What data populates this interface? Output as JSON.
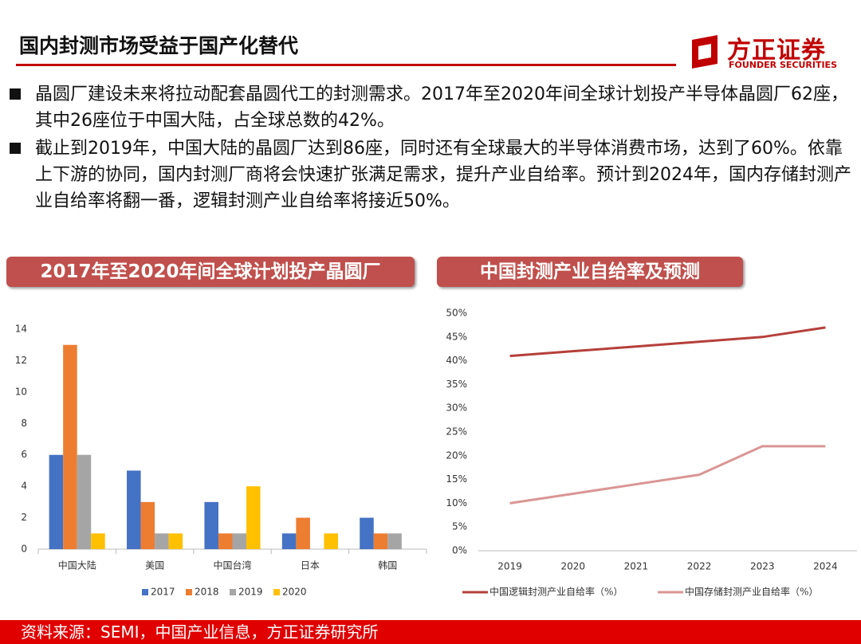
{
  "header": {
    "title": "国内封测市场受益于国产化替代",
    "logo_cn": "方正证券",
    "logo_en": "FOUNDER SECURITIES"
  },
  "bullets": [
    "晶圆厂建设未来将拉动配套晶圆代工的封测需求。2017年至2020年间全球计划投产半导体晶圆厂62座，其中26座位于中国大陆，占全球总数的42%。",
    "截止到2019年，中国大陆的晶圆厂达到86座，同时还有全球最大的半导体消费市场，达到了60%。依靠上下游的协同，国内封测厂商将会快速扩张满足需求，提升产业自给率。预计到2024年，国内存储封测产业自给率将翻一番，逻辑封测产业自给率将接近50%。"
  ],
  "footer": {
    "source": "资料来源：SEMI，中国产业信息，方正证券研究所"
  },
  "chart_data": [
    {
      "type": "bar",
      "title": "2017年至2020年间全球计划投产晶圆厂",
      "categories": [
        "中国大陆",
        "美国",
        "中国台湾",
        "日本",
        "韩国"
      ],
      "series": [
        {
          "name": "2017",
          "color": "#4472c4",
          "values": [
            6,
            5,
            3,
            1,
            2
          ]
        },
        {
          "name": "2018",
          "color": "#ed7d31",
          "values": [
            13,
            3,
            1,
            2,
            1
          ]
        },
        {
          "name": "2019",
          "color": "#a5a5a5",
          "values": [
            6,
            1,
            1,
            0,
            1
          ]
        },
        {
          "name": "2020",
          "color": "#ffc000",
          "values": [
            1,
            1,
            4,
            1,
            0
          ]
        }
      ],
      "ylim": [
        0,
        14
      ],
      "yticks": [
        0,
        2,
        4,
        6,
        8,
        10,
        12,
        14
      ],
      "grid": false
    },
    {
      "type": "line",
      "title": "中国封测产业自给率及预测",
      "categories": [
        "2019",
        "2020",
        "2021",
        "2022",
        "2023",
        "2024"
      ],
      "series": [
        {
          "name": "中国逻辑封测产业自给率（%）",
          "color": "#b5403a",
          "values": [
            41,
            42,
            43,
            44,
            45,
            47
          ]
        },
        {
          "name": "中国存储封测产业自给率（%）",
          "color": "#d99694",
          "values": [
            10,
            12,
            14,
            16,
            22,
            22
          ]
        }
      ],
      "ylim": [
        0,
        50
      ],
      "yticks": [
        {
          "value": 0,
          "label": "0%"
        },
        {
          "value": 5,
          "label": "5%"
        },
        {
          "value": 10,
          "label": "10%"
        },
        {
          "value": 15,
          "label": "15%"
        },
        {
          "value": 20,
          "label": "20%"
        },
        {
          "value": 25,
          "label": "25%"
        },
        {
          "value": 30,
          "label": "30%"
        },
        {
          "value": 35,
          "label": "35%"
        },
        {
          "value": 40,
          "label": "40%"
        },
        {
          "value": 45,
          "label": "45%"
        },
        {
          "value": 50,
          "label": "50%"
        }
      ],
      "grid": false
    }
  ]
}
